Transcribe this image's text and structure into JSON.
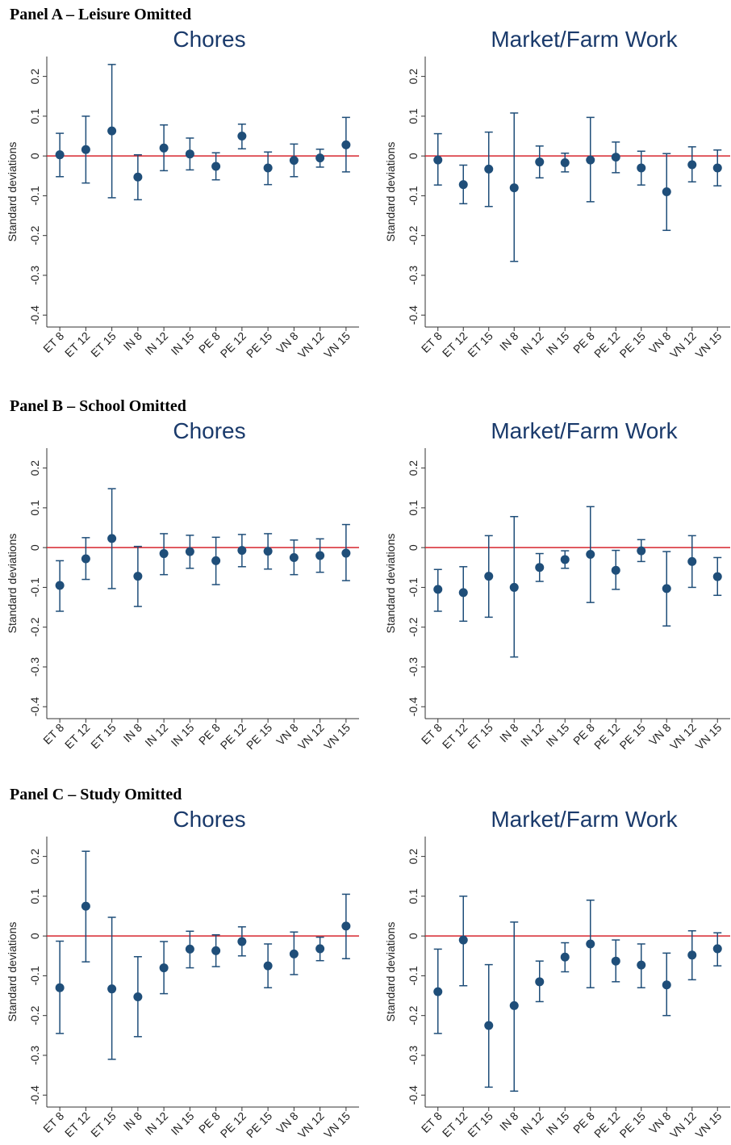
{
  "panel_headings": [
    "Panel A – Leisure Omitted",
    "Panel B – School Omitted",
    "Panel C – Study Omitted"
  ],
  "chart_data": [
    {
      "type": "errorbar",
      "panel": 0,
      "title": "Chores",
      "ylabel": "Standard deviations",
      "categories": [
        "ET 8",
        "ET 12",
        "ET 15",
        "IN 8",
        "IN 12",
        "IN 15",
        "PE 8",
        "PE 12",
        "PE 15",
        "VN 8",
        "VN 12",
        "VN 15"
      ],
      "values": [
        0.003,
        0.016,
        0.063,
        -0.053,
        0.02,
        0.005,
        -0.026,
        0.05,
        -0.03,
        -0.011,
        -0.005,
        0.028
      ],
      "lower": [
        -0.052,
        -0.068,
        -0.105,
        -0.11,
        -0.037,
        -0.035,
        -0.06,
        0.018,
        -0.072,
        -0.052,
        -0.028,
        -0.04
      ],
      "upper": [
        0.057,
        0.1,
        0.23,
        0.003,
        0.078,
        0.045,
        0.008,
        0.08,
        0.01,
        0.03,
        0.017,
        0.097
      ],
      "color": "#1f4e79",
      "hline": 0,
      "hline_color": "#d6262e",
      "ylim": [
        -0.43,
        0.25
      ],
      "yticks": [
        -0.4,
        -0.3,
        -0.2,
        -0.1,
        0,
        0.1,
        0.2
      ]
    },
    {
      "type": "errorbar",
      "panel": 0,
      "title": "Market/Farm Work",
      "ylabel": "Standard deviations",
      "categories": [
        "ET 8",
        "ET 12",
        "ET 15",
        "IN 8",
        "IN 12",
        "IN 15",
        "PE 8",
        "PE 12",
        "PE 15",
        "VN 8",
        "VN 12",
        "VN 15"
      ],
      "values": [
        -0.01,
        -0.072,
        -0.033,
        -0.08,
        -0.015,
        -0.017,
        -0.01,
        -0.003,
        -0.03,
        -0.09,
        -0.022,
        -0.03
      ],
      "lower": [
        -0.073,
        -0.12,
        -0.127,
        -0.265,
        -0.055,
        -0.04,
        -0.115,
        -0.042,
        -0.073,
        -0.187,
        -0.065,
        -0.075
      ],
      "upper": [
        0.056,
        -0.023,
        0.06,
        0.108,
        0.025,
        0.007,
        0.097,
        0.035,
        0.012,
        0.006,
        0.023,
        0.015
      ],
      "color": "#1f4e79",
      "hline": 0,
      "hline_color": "#d6262e",
      "ylim": [
        -0.43,
        0.25
      ],
      "yticks": [
        -0.4,
        -0.3,
        -0.2,
        -0.1,
        0,
        0.1,
        0.2
      ]
    },
    {
      "type": "errorbar",
      "panel": 1,
      "title": "Chores",
      "ylabel": "Standard deviations",
      "categories": [
        "ET 8",
        "ET 12",
        "ET 15",
        "IN 8",
        "IN 12",
        "IN 15",
        "PE 8",
        "PE 12",
        "PE 15",
        "VN 8",
        "VN 12",
        "VN 15"
      ],
      "values": [
        -0.095,
        -0.028,
        0.023,
        -0.072,
        -0.015,
        -0.01,
        -0.033,
        -0.007,
        -0.009,
        -0.025,
        -0.02,
        -0.014
      ],
      "lower": [
        -0.16,
        -0.08,
        -0.103,
        -0.148,
        -0.068,
        -0.052,
        -0.093,
        -0.048,
        -0.054,
        -0.068,
        -0.062,
        -0.083
      ],
      "upper": [
        -0.033,
        0.025,
        0.148,
        0.003,
        0.035,
        0.031,
        0.026,
        0.033,
        0.035,
        0.019,
        0.022,
        0.058
      ],
      "color": "#1f4e79",
      "hline": 0,
      "hline_color": "#d6262e",
      "ylim": [
        -0.43,
        0.25
      ],
      "yticks": [
        -0.4,
        -0.3,
        -0.2,
        -0.1,
        0,
        0.1,
        0.2
      ]
    },
    {
      "type": "errorbar",
      "panel": 1,
      "title": "Market/Farm Work",
      "ylabel": "Standard deviations",
      "categories": [
        "ET 8",
        "ET 12",
        "ET 15",
        "IN 8",
        "IN 12",
        "IN 15",
        "PE 8",
        "PE 12",
        "PE 15",
        "VN 8",
        "VN 12",
        "VN 15"
      ],
      "values": [
        -0.105,
        -0.113,
        -0.072,
        -0.1,
        -0.05,
        -0.03,
        -0.017,
        -0.057,
        -0.008,
        -0.103,
        -0.035,
        -0.073
      ],
      "lower": [
        -0.16,
        -0.185,
        -0.175,
        -0.275,
        -0.085,
        -0.052,
        -0.138,
        -0.105,
        -0.035,
        -0.197,
        -0.1,
        -0.12
      ],
      "upper": [
        -0.055,
        -0.048,
        0.03,
        0.078,
        -0.015,
        -0.008,
        0.103,
        -0.007,
        0.02,
        -0.01,
        0.03,
        -0.025
      ],
      "color": "#1f4e79",
      "hline": 0,
      "hline_color": "#d6262e",
      "ylim": [
        -0.43,
        0.25
      ],
      "yticks": [
        -0.4,
        -0.3,
        -0.2,
        -0.1,
        0,
        0.1,
        0.2
      ]
    },
    {
      "type": "errorbar",
      "panel": 2,
      "title": "Chores",
      "ylabel": "Standard deviations",
      "categories": [
        "ET 8",
        "ET 12",
        "ET 15",
        "IN 8",
        "IN 12",
        "IN 15",
        "PE 8",
        "PE 12",
        "PE 15",
        "VN 8",
        "VN 12",
        "VN 15"
      ],
      "values": [
        -0.13,
        0.075,
        -0.133,
        -0.153,
        -0.08,
        -0.033,
        -0.037,
        -0.014,
        -0.075,
        -0.045,
        -0.032,
        0.025
      ],
      "lower": [
        -0.245,
        -0.065,
        -0.31,
        -0.253,
        -0.145,
        -0.08,
        -0.077,
        -0.05,
        -0.13,
        -0.097,
        -0.062,
        -0.057
      ],
      "upper": [
        -0.013,
        0.213,
        0.047,
        -0.052,
        -0.014,
        0.012,
        0.003,
        0.023,
        -0.02,
        0.01,
        -0.003,
        0.105
      ],
      "color": "#1f4e79",
      "hline": 0,
      "hline_color": "#d6262e",
      "ylim": [
        -0.43,
        0.25
      ],
      "yticks": [
        -0.4,
        -0.3,
        -0.2,
        -0.1,
        0,
        0.1,
        0.2
      ]
    },
    {
      "type": "errorbar",
      "panel": 2,
      "title": "Market/Farm Work",
      "ylabel": "Standard deviations",
      "categories": [
        "ET 8",
        "ET 12",
        "ET 15",
        "IN 8",
        "IN 12",
        "IN 15",
        "PE 8",
        "PE 12",
        "PE 15",
        "VN 8",
        "VN 12",
        "VN 15"
      ],
      "values": [
        -0.14,
        -0.01,
        -0.225,
        -0.175,
        -0.115,
        -0.053,
        -0.02,
        -0.063,
        -0.073,
        -0.123,
        -0.048,
        -0.032
      ],
      "lower": [
        -0.245,
        -0.125,
        -0.38,
        -0.39,
        -0.165,
        -0.09,
        -0.13,
        -0.115,
        -0.13,
        -0.2,
        -0.11,
        -0.075
      ],
      "upper": [
        -0.033,
        0.1,
        -0.072,
        0.035,
        -0.063,
        -0.017,
        0.09,
        -0.01,
        -0.02,
        -0.043,
        0.013,
        0.008
      ],
      "color": "#1f4e79",
      "hline": 0,
      "hline_color": "#d6262e",
      "ylim": [
        -0.43,
        0.25
      ],
      "yticks": [
        -0.4,
        -0.3,
        -0.2,
        -0.1,
        0,
        0.1,
        0.2
      ]
    }
  ]
}
